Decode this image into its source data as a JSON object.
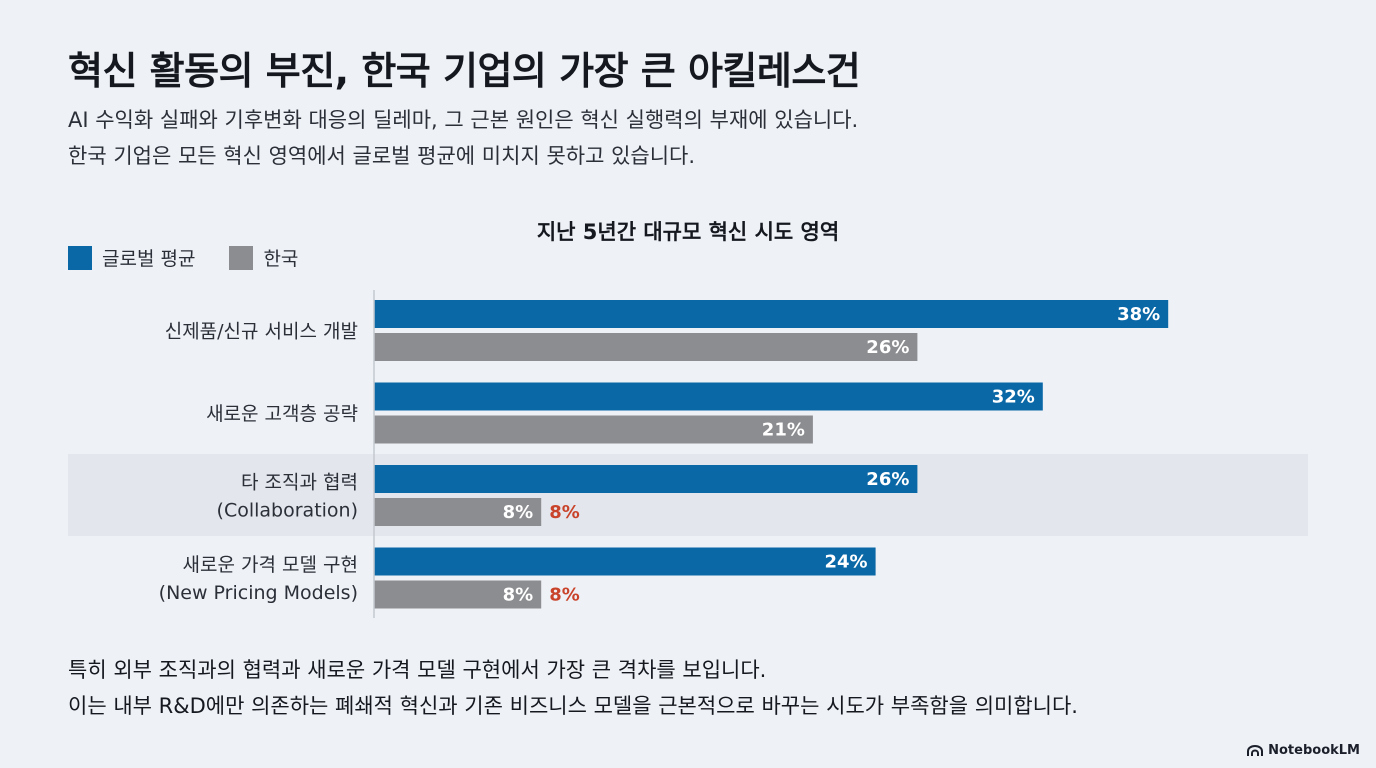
{
  "header": {
    "title": "혁신 활동의 부진, 한국 기업의 가장 큰 아킬레스건",
    "subtitle_line1": "AI 수익화 실패와 기후변화 대응의 딜레마, 그 근본 원인은 혁신 실행력의 부재에 있습니다.",
    "subtitle_line2": "한국 기업은 모든 혁신 영역에서 글로벌 평균에 미치지 못하고 있습니다."
  },
  "chart_data": {
    "type": "bar",
    "orientation": "horizontal",
    "title": "지난 5년간 대규모 혁신 시도 영역",
    "categories": [
      [
        "신제품/신규 서비스 개발"
      ],
      [
        "새로운 고객층 공략"
      ],
      [
        "타 조직과 협력",
        "(Collaboration)"
      ],
      [
        "새로운 가격 모델 구현",
        "(New Pricing Models)"
      ]
    ],
    "series": [
      {
        "name": "글로벌 평균",
        "color": "#0b68a7",
        "values": [
          38,
          32,
          26,
          24
        ],
        "labels": [
          "38%",
          "32%",
          "26%",
          "24%"
        ]
      },
      {
        "name": "한국",
        "color": "#8c8d90",
        "values": [
          26,
          21,
          8,
          8
        ],
        "labels": [
          "26%",
          "21%",
          "8%",
          "8%"
        ]
      }
    ],
    "highlight_categories": [
      2
    ],
    "annotations": [
      {
        "category": 2,
        "series": 1,
        "text": "8%",
        "color": "#c9432a"
      },
      {
        "category": 3,
        "series": 1,
        "text": "8%",
        "color": "#c9432a"
      }
    ],
    "xlim": [
      0,
      38
    ],
    "unit": "%",
    "legend_position": "top-left"
  },
  "footer": {
    "line1": "특히 외부 조직과의 협력과 새로운 가격 모델 구현에서 가장 큰 격차를 보입니다.",
    "line2": "이는 내부 R&D에만 의존하는 폐쇄적 혁신과 기존 비즈니스 모델을 근본적으로 바꾸는 시도가 부족함을 의미합니다."
  },
  "brand": {
    "name": "NotebookLM",
    "icon": "notebooklm-logo-icon"
  },
  "colors": {
    "background": "#eef1f6",
    "highlight_band": "#e3e6ec",
    "global": "#0b68a7",
    "korea": "#8c8d90",
    "accent_red": "#c9432a"
  }
}
